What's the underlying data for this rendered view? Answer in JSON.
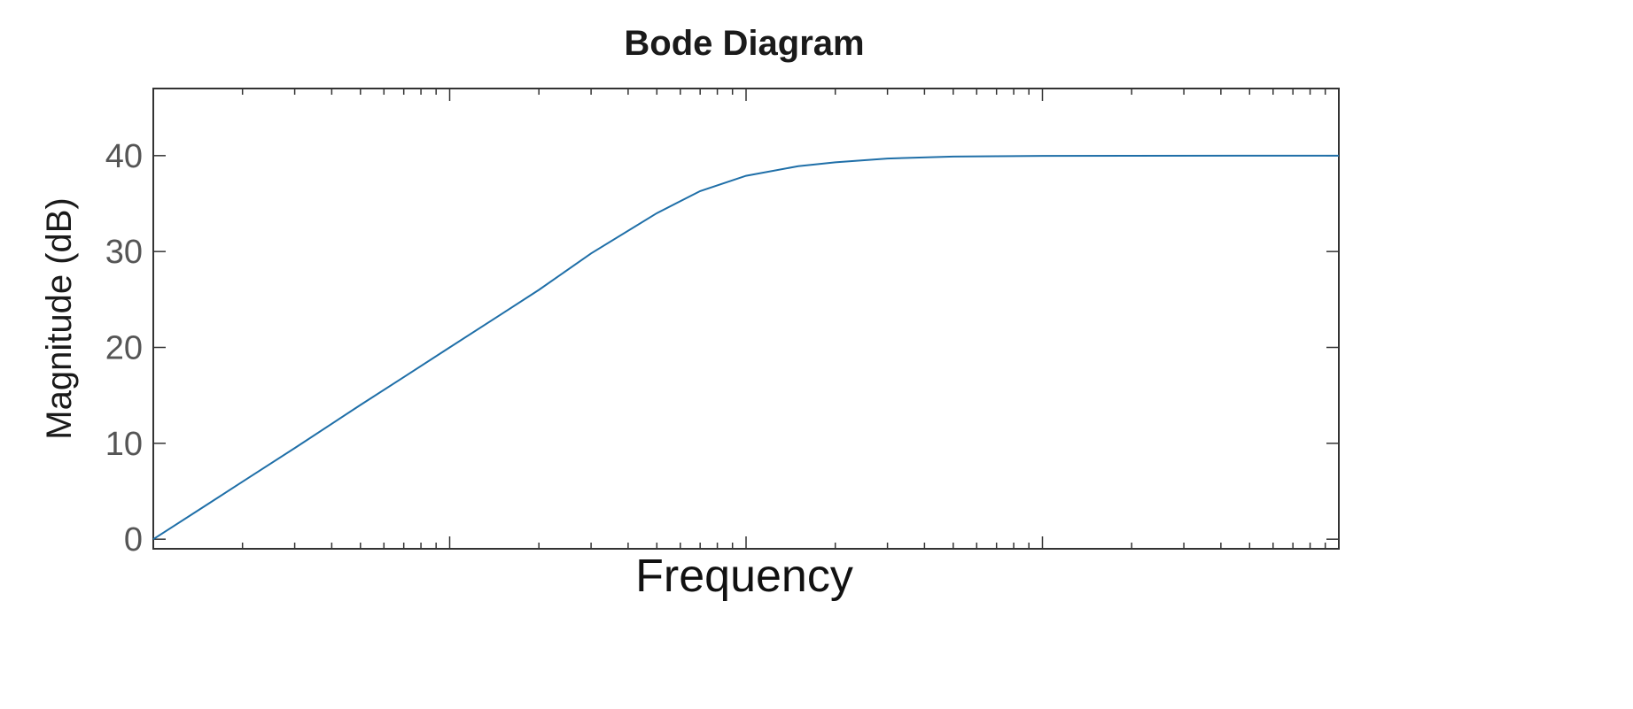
{
  "chart_data": {
    "type": "line",
    "title": "Bode Diagram",
    "xlabel": "Frequency",
    "ylabel": "Magnitude (dB)",
    "xscale": "log",
    "xlim_decades": 4,
    "ylim": [
      -1,
      47
    ],
    "yticks": [
      0,
      10,
      20,
      30,
      40
    ],
    "grid": false,
    "series": [
      {
        "color": "#1f6fa8",
        "x": [
          1,
          1.5,
          2,
          3,
          5,
          7,
          10,
          15,
          20,
          30,
          50,
          70,
          100,
          150,
          200,
          300,
          500,
          700,
          1000,
          2000,
          5000,
          10000
        ],
        "y": [
          0,
          3.5,
          6.0,
          9.5,
          14.0,
          16.9,
          20.0,
          23.5,
          26.0,
          29.8,
          34.0,
          36.3,
          37.9,
          38.9,
          39.3,
          39.7,
          39.9,
          39.94,
          39.97,
          39.99,
          40.0,
          40.0
        ]
      }
    ]
  }
}
